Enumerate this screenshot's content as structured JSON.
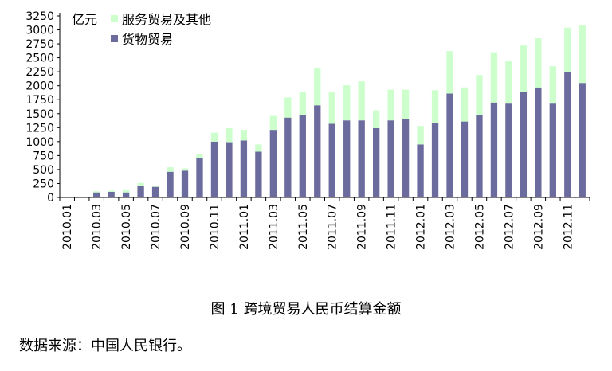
{
  "chart_data": {
    "type": "bar",
    "stacked": true,
    "unit_label": "亿元",
    "categories": [
      "2010.01",
      "2010.02",
      "2010.03",
      "2010.04",
      "2010.05",
      "2010.06",
      "2010.07",
      "2010.08",
      "2010.09",
      "2010.10",
      "2010.11",
      "2010.12",
      "2011.01",
      "2011.02",
      "2011.03",
      "2011.04",
      "2011.05",
      "2011.06",
      "2011.07",
      "2011.08",
      "2011.09",
      "2011.10",
      "2011.11",
      "2011.12",
      "2012.01",
      "2012.02",
      "2012.03",
      "2012.04",
      "2012.05",
      "2012.06",
      "2012.07",
      "2012.08",
      "2012.09",
      "2012.10",
      "2012.11",
      "2012.12"
    ],
    "x_tick_labels": [
      "2010.01",
      "2010.03",
      "2010.05",
      "2010.07",
      "2010.09",
      "2010.11",
      "2011.01",
      "2011.03",
      "2011.05",
      "2011.07",
      "2011.09",
      "2011.11",
      "2012.01",
      "2012.03",
      "2012.05",
      "2012.07",
      "2012.09",
      "2012.11"
    ],
    "series": [
      {
        "name": "货物贸易",
        "color": "#6b6b9e",
        "values": [
          0,
          0,
          90,
          100,
          90,
          200,
          190,
          460,
          480,
          700,
          1000,
          990,
          1020,
          820,
          1210,
          1430,
          1470,
          1650,
          1320,
          1380,
          1380,
          1240,
          1380,
          1410,
          950,
          1330,
          1860,
          1360,
          1470,
          1700,
          1680,
          1890,
          1970,
          1680,
          2250,
          2050
        ]
      },
      {
        "name": "服务贸易及其他",
        "color": "#ccffcc",
        "values": [
          0,
          0,
          20,
          20,
          40,
          60,
          10,
          80,
          40,
          80,
          160,
          250,
          190,
          130,
          250,
          360,
          420,
          670,
          560,
          630,
          700,
          320,
          550,
          520,
          330,
          590,
          760,
          610,
          720,
          900,
          770,
          830,
          880,
          670,
          790,
          1030
        ]
      }
    ],
    "y_ticks": [
      0,
      250,
      500,
      750,
      1000,
      1250,
      1500,
      1750,
      2000,
      2250,
      2500,
      2750,
      3000,
      3250
    ],
    "ylim": [
      0,
      3250
    ],
    "legend_position": "top-left",
    "caption": "图 1 跨境贸易人民币结算金额",
    "source": "数据来源：中国人民银行。"
  }
}
